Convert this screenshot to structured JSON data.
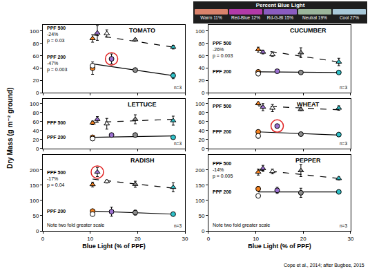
{
  "chart_data": [
    {
      "type": "scatter",
      "title": "TOMATO",
      "xlim": [
        0,
        30
      ],
      "xticks": [
        0,
        10,
        20,
        30
      ],
      "ylim": [
        0,
        110
      ],
      "yticks": [
        0,
        20,
        40,
        60,
        80,
        100
      ],
      "grid": false,
      "tick_labels": "y",
      "sample": "n=3",
      "series": [
        {
          "name": "PPF 500",
          "stats": [
            "-24%",
            "p = 0.03"
          ],
          "marker": "triangle",
          "line_style": "dashed",
          "x": [
            10.5,
            11.5,
            13.5,
            19.5,
            27.5
          ],
          "values": [
            88,
            97,
            96,
            86,
            74
          ],
          "error": [
            6,
            12,
            6,
            2,
            3
          ],
          "colors": [
            "#f58220",
            "#9b6fcf",
            "#ffffff",
            "#8c8c8c",
            "#2fc1c9"
          ],
          "circled": [
            false,
            false,
            false,
            false,
            false
          ],
          "fit": {
            "x": [
              10.5,
              27.5
            ],
            "values": [
              94,
              74
            ]
          }
        },
        {
          "name": "PPF 200",
          "stats": [
            "-47%",
            "p = 0.003"
          ],
          "marker": "circle",
          "line_style": "solid",
          "x": [
            10.5,
            10.5,
            14.5,
            19.5,
            27.5
          ],
          "values": [
            40,
            44,
            55,
            37,
            28
          ],
          "error": [
            10,
            3,
            8,
            3,
            5
          ],
          "colors": [
            "#f58220",
            "#ffffff",
            "#9b6fcf",
            "#8c8c8c",
            "#2fc1c9"
          ],
          "circled": [
            false,
            false,
            true,
            false,
            false
          ],
          "fit": {
            "x": [
              10.5,
              27.5
            ],
            "values": [
              47,
              28
            ]
          }
        }
      ]
    },
    {
      "type": "scatter",
      "title": "CUCUMBER",
      "xlim": [
        0,
        30
      ],
      "xticks": [
        0,
        10,
        20,
        30
      ],
      "ylim": [
        0,
        110
      ],
      "yticks": [
        0,
        20,
        40,
        60,
        80,
        100
      ],
      "grid": false,
      "tick_labels": "y",
      "sample": "n=3",
      "series": [
        {
          "name": "PPF 500",
          "stats": [
            "-26%",
            "p = 0.003"
          ],
          "marker": "triangle",
          "line_style": "dashed",
          "x": [
            10.5,
            11.5,
            13.5,
            19.5,
            27.5
          ],
          "values": [
            70,
            66,
            62,
            65,
            50
          ],
          "error": [
            4,
            3,
            3,
            8,
            6
          ],
          "colors": [
            "#f58220",
            "#9b6fcf",
            "#ffffff",
            "#8c8c8c",
            "#2fc1c9"
          ],
          "circled": [
            false,
            false,
            false,
            false,
            false
          ],
          "fit": {
            "x": [
              10.5,
              27.5
            ],
            "values": [
              70,
              50
            ]
          }
        },
        {
          "name": "PPF 200",
          "marker": "circle",
          "line_style": "solid",
          "x": [
            10.5,
            10.5,
            14.5,
            19.5,
            27.5
          ],
          "values": [
            34,
            31,
            35,
            33,
            33
          ],
          "error": [
            2,
            2,
            1,
            2,
            2
          ],
          "colors": [
            "#f58220",
            "#ffffff",
            "#9b6fcf",
            "#8c8c8c",
            "#2fc1c9"
          ],
          "circled": [
            false,
            false,
            false,
            false,
            false
          ],
          "fit": {
            "x": [
              10.5,
              27.5
            ],
            "values": [
              34,
              33
            ]
          }
        }
      ]
    },
    {
      "type": "scatter",
      "title": "LETTUCE",
      "xlim": [
        0,
        30
      ],
      "xticks": [
        0,
        10,
        20,
        30
      ],
      "ylim": [
        0,
        110
      ],
      "yticks": [
        0,
        20,
        40,
        60,
        80,
        100
      ],
      "grid": false,
      "tick_labels": "y",
      "sample": "n=3",
      "series": [
        {
          "name": "PPF 500",
          "marker": "triangle",
          "line_style": "dashed",
          "x": [
            10.5,
            11.5,
            13.5,
            19.5,
            27.5
          ],
          "values": [
            57,
            65,
            55,
            65,
            62
          ],
          "error": [
            4,
            6,
            12,
            10,
            10
          ],
          "colors": [
            "#f58220",
            "#9b6fcf",
            "#ffffff",
            "#8c8c8c",
            "#2fc1c9"
          ],
          "circled": [
            false,
            false,
            false,
            false,
            false
          ],
          "fit": {
            "x": [
              10.5,
              27.5
            ],
            "values": [
              58,
              65
            ]
          }
        },
        {
          "name": "PPF 200",
          "marker": "circle",
          "line_style": "solid",
          "x": [
            10.5,
            10.5,
            14.5,
            19.5,
            27.5
          ],
          "values": [
            25,
            22,
            30,
            30,
            25
          ],
          "error": [
            2,
            2,
            1,
            1,
            1
          ],
          "colors": [
            "#f58220",
            "#ffffff",
            "#9b6fcf",
            "#8c8c8c",
            "#2fc1c9"
          ],
          "circled": [
            false,
            false,
            false,
            false,
            false
          ],
          "fit": {
            "x": [
              10.5,
              27.5
            ],
            "values": [
              25,
              28
            ]
          }
        }
      ]
    },
    {
      "type": "scatter",
      "title": "WHEAT",
      "xlim": [
        0,
        30
      ],
      "xticks": [
        0,
        10,
        20,
        30
      ],
      "ylim": [
        0,
        110
      ],
      "yticks": [
        0,
        20,
        40,
        60,
        80,
        100
      ],
      "grid": false,
      "tick_labels": "y",
      "sample": "n=3",
      "series": [
        {
          "name": "PPF 500",
          "marker": "triangle",
          "line_style": "dashed",
          "x": [
            10.5,
            11.5,
            13.5,
            19.5,
            27.5
          ],
          "values": [
            100,
            92,
            90,
            87,
            90
          ],
          "error": [
            3,
            8,
            8,
            3,
            5
          ],
          "colors": [
            "#f58220",
            "#9b6fcf",
            "#ffffff",
            "#8c8c8c",
            "#2fc1c9"
          ],
          "circled": [
            false,
            false,
            false,
            false,
            false
          ],
          "fit": {
            "x": [
              10.5,
              27.5
            ],
            "values": [
              95,
              86
            ]
          }
        },
        {
          "name": "PPF 200",
          "marker": "circle",
          "line_style": "solid",
          "x": [
            10.5,
            10.5,
            14.5,
            19.5,
            27.5
          ],
          "values": [
            37,
            28,
            50,
            32,
            31
          ],
          "error": [
            4,
            5,
            4,
            3,
            2
          ],
          "colors": [
            "#f58220",
            "#ffffff",
            "#9b6fcf",
            "#8c8c8c",
            "#2fc1c9"
          ],
          "circled": [
            false,
            false,
            true,
            false,
            false
          ],
          "fit": {
            "x": [
              10.5,
              27.5
            ],
            "values": [
              37,
              30
            ]
          }
        }
      ]
    },
    {
      "type": "scatter",
      "title": "RADISH",
      "xlim": [
        0,
        30
      ],
      "xticks": [
        0,
        10,
        20,
        30
      ],
      "ylim": [
        0,
        250
      ],
      "yticks": [
        0,
        50,
        100,
        150,
        200
      ],
      "grid": false,
      "sample": "n=3",
      "scale_note": "Note two fold greater scale",
      "xlabel": "Blue Light (% of PPF)",
      "series": [
        {
          "name": "PPF 500",
          "stats": [
            "-17%",
            "p = 0.04"
          ],
          "marker": "triangle",
          "line_style": "dashed",
          "x": [
            10.5,
            11.5,
            13.5,
            19.5,
            27.5
          ],
          "values": [
            152,
            193,
            162,
            153,
            143
          ],
          "error": [
            8,
            15,
            5,
            10,
            15
          ],
          "colors": [
            "#f58220",
            "#9b6fcf",
            "#ffffff",
            "#8c8c8c",
            "#2fc1c9"
          ],
          "circled": [
            false,
            true,
            false,
            false,
            false
          ],
          "fit": {
            "x": [
              10.5,
              27.5
            ],
            "values": [
              170,
              140
            ]
          }
        },
        {
          "name": "PPF 200",
          "marker": "circle",
          "line_style": "solid",
          "x": [
            10.5,
            10.5,
            14.5,
            19.5,
            27.5
          ],
          "values": [
            65,
            55,
            63,
            60,
            55
          ],
          "error": [
            5,
            5,
            15,
            8,
            4
          ],
          "colors": [
            "#f58220",
            "#ffffff",
            "#9b6fcf",
            "#8c8c8c",
            "#2fc1c9"
          ],
          "circled": [
            false,
            false,
            false,
            false,
            false
          ],
          "fit": {
            "x": [
              10.5,
              27.5
            ],
            "values": [
              65,
              55
            ]
          }
        }
      ]
    },
    {
      "type": "scatter",
      "title": "PEPPER",
      "xlim": [
        0,
        30
      ],
      "xticks": [
        0,
        10,
        20,
        30
      ],
      "ylim": [
        0,
        250
      ],
      "yticks": [
        0,
        50,
        100,
        150,
        200
      ],
      "grid": false,
      "sample": "n=3",
      "scale_note": "Note two fold greater scale",
      "xlabel": "Blue Light (% of PPF)",
      "series": [
        {
          "name": "PPF 500",
          "stats": [
            "-14%",
            "p = 0.005"
          ],
          "marker": "triangle",
          "line_style": "dashed",
          "x": [
            10.5,
            11.5,
            13.5,
            19.5,
            27.5
          ],
          "values": [
            193,
            205,
            195,
            198,
            172
          ],
          "error": [
            10,
            10,
            8,
            20,
            5
          ],
          "colors": [
            "#f58220",
            "#9b6fcf",
            "#ffffff",
            "#8c8c8c",
            "#2fc1c9"
          ],
          "circled": [
            false,
            false,
            false,
            false,
            false
          ],
          "fit": {
            "x": [
              10.5,
              27.5
            ],
            "values": [
              200,
              172
            ]
          }
        },
        {
          "name": "PPF 200",
          "marker": "circle",
          "line_style": "solid",
          "x": [
            10.5,
            10.5,
            14.5,
            19.5,
            27.5
          ],
          "values": [
            138,
            115,
            133,
            125,
            128
          ],
          "error": [
            8,
            5,
            10,
            15,
            5
          ],
          "colors": [
            "#f58220",
            "#ffffff",
            "#9b6fcf",
            "#8c8c8c",
            "#2fc1c9"
          ],
          "circled": [
            false,
            false,
            false,
            false,
            false
          ],
          "fit": {
            "x": [
              10.5,
              27.5
            ],
            "values": [
              128,
              128
            ]
          }
        }
      ]
    }
  ],
  "ylabel": "Dry Mass (g m⁻² ground)",
  "source": "Cope et al., 2014; after Bugbee, 2015",
  "inset": {
    "title": "Percent Blue Light",
    "lamps": [
      {
        "name": "Warm",
        "percent": "11%",
        "color": "#d9826b"
      },
      {
        "name": "Red-Blue",
        "percent": "12%",
        "color": "#b23aa8"
      },
      {
        "name": "Rd-G-Bl",
        "percent": "15%",
        "color": "#8a5cc0"
      },
      {
        "name": "Neutral",
        "percent": "19%",
        "color": "#9bb59b"
      },
      {
        "name": "Cool",
        "percent": "27%",
        "color": "#a8c8d8"
      }
    ]
  }
}
